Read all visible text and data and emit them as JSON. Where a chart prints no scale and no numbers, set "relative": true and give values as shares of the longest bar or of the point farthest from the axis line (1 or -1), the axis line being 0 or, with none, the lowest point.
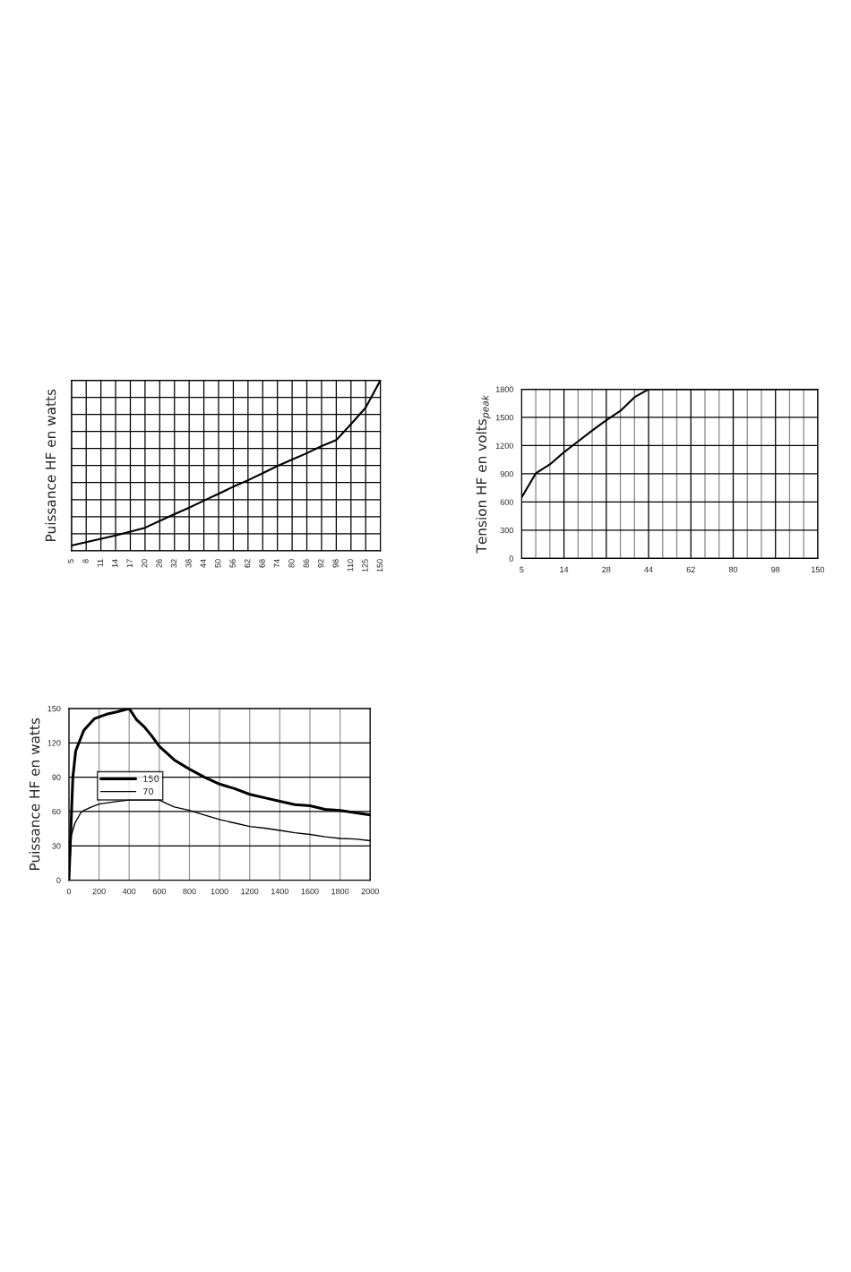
{
  "chart_data": [
    {
      "type": "line",
      "ylabel": "Puissance HF en watts",
      "relative": true,
      "tick_labels": "x",
      "grid": true,
      "categories": [
        "5",
        "8",
        "11",
        "14",
        "17",
        "20",
        "26",
        "32",
        "38",
        "44",
        "50",
        "56",
        "62",
        "68",
        "74",
        "80",
        "86",
        "92",
        "98",
        "110",
        "125",
        "150"
      ],
      "series": [
        {
          "color": "#000000",
          "values": [
            0.031,
            0.05,
            0.07,
            0.09,
            0.112,
            0.135,
            0.175,
            0.215,
            0.253,
            0.294,
            0.334,
            0.376,
            0.414,
            0.455,
            0.497,
            0.535,
            0.573,
            0.614,
            0.65,
            0.743,
            0.84,
            1.0
          ]
        }
      ]
    },
    {
      "type": "line",
      "ylabel": "Tension HF en volts$_{peak}$",
      "grid": true,
      "ylim": [
        0,
        1800
      ],
      "yticks": [
        0,
        300,
        600,
        900,
        1200,
        1500,
        1800
      ],
      "categories": [
        "5",
        null,
        null,
        "14",
        null,
        null,
        "28",
        null,
        null,
        "44",
        null,
        null,
        "62",
        null,
        null,
        "80",
        null,
        null,
        "98",
        null,
        null,
        "150"
      ],
      "series": [
        {
          "color": "#000000",
          "values": [
            650,
            905,
            1000,
            1130,
            1245,
            1360,
            1470,
            1570,
            1715,
            1800,
            1800,
            1800,
            1800,
            1800,
            1800,
            1800,
            1800,
            1800,
            1800,
            1800,
            1800,
            1800
          ]
        }
      ]
    },
    {
      "type": "line",
      "ylabel": "Puissance HF en watts",
      "grid": true,
      "legend": "left",
      "xlim": [
        0,
        2000
      ],
      "xticks": [
        0,
        200,
        400,
        600,
        800,
        1000,
        1200,
        1400,
        1600,
        1800,
        2000
      ],
      "ylim": [
        0,
        150
      ],
      "yticks": [
        0,
        30,
        60,
        90,
        120,
        150
      ],
      "series": [
        {
          "name": "150",
          "color": "#000000",
          "x": [
            0,
            26,
            45,
            99,
            168,
            250,
            317,
            400,
            450,
            500,
            550,
            600,
            700,
            800,
            900,
            1000,
            1100,
            1200,
            1300,
            1400,
            1500,
            1600,
            1700,
            1800,
            1900,
            2000
          ],
          "values": [
            0,
            90,
            113,
            131,
            141,
            145,
            147,
            150,
            140,
            134,
            126,
            117,
            105,
            97,
            90,
            84,
            80,
            75,
            72,
            69,
            66,
            65,
            62,
            61,
            59,
            57
          ]
        },
        {
          "name": "70",
          "color": "#000000",
          "x": [
            0,
            16,
            40,
            79,
            100,
            150,
            200,
            300,
            400,
            600,
            650,
            700,
            800,
            900,
            1000,
            1100,
            1200,
            1300,
            1400,
            1500,
            1600,
            1700,
            1800,
            1900,
            2000
          ],
          "values": [
            0,
            39,
            50,
            59,
            61,
            64,
            66.5,
            68.5,
            70,
            70,
            67,
            64,
            61,
            57,
            53,
            50,
            47,
            45.5,
            43.5,
            41.5,
            40,
            38,
            36.5,
            36,
            34.5
          ]
        }
      ]
    }
  ]
}
